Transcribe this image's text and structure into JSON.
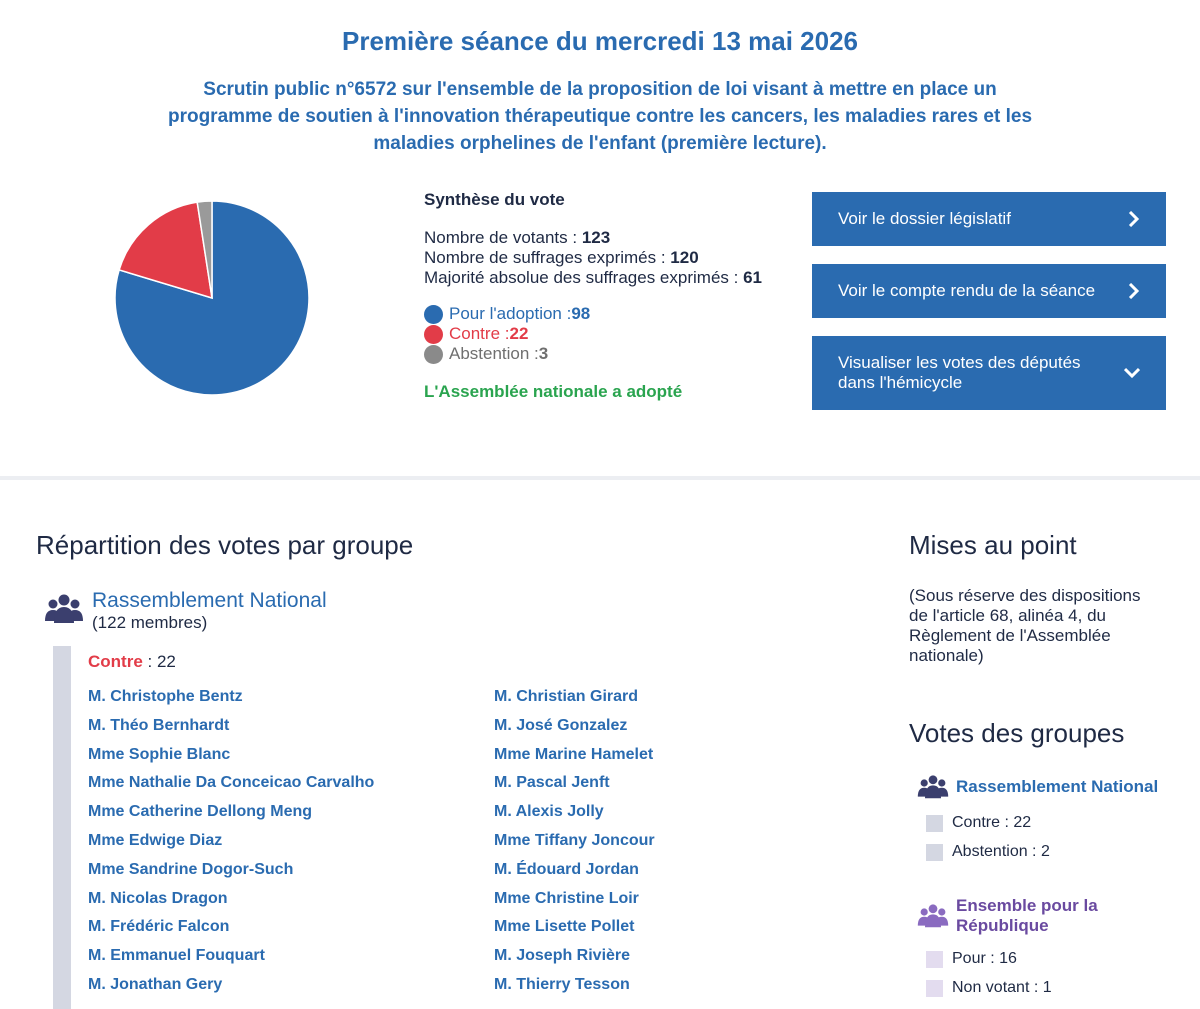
{
  "header": {
    "title": "Première séance du mercredi 13 mai 2026",
    "subtitle": "Scrutin public n°6572 sur l'ensemble de la proposition de loi visant à mettre en place un programme de soutien à l'innovation thérapeutique contre les cancers, les maladies rares et les maladies orphelines de l'enfant (première lecture)."
  },
  "synthese": {
    "heading": "Synthèse du vote",
    "votants_label": "Nombre de votants : ",
    "votants_value": "123",
    "exprimes_label": "Nombre de suffrages exprimés : ",
    "exprimes_value": "120",
    "majorite_label": "Majorité absolue des suffrages exprimés : ",
    "majorite_value": "61",
    "pour_label": "Pour l'adoption : ",
    "pour_value": "98",
    "contre_label": "Contre : ",
    "contre_value": "22",
    "abstention_label": "Abstention : ",
    "abstention_value": "3",
    "outcome": "L'Assemblée nationale a adopté"
  },
  "pie": {
    "slices": [
      {
        "key": "pour",
        "value": 98,
        "color": "#2a6bb0"
      },
      {
        "key": "contre",
        "value": 22,
        "color": "#e23c48"
      },
      {
        "key": "abstention",
        "value": 3,
        "color": "#9a9a9a"
      }
    ]
  },
  "buttons": {
    "dossier": "Voir le dossier législatif",
    "compte_rendu": "Voir le compte rendu de la séance",
    "hemicycle": "Visualiser les votes des députés dans l'hémicycle"
  },
  "repartition": {
    "title": "Répartition des votes par groupe",
    "group_name": "Rassemblement National",
    "group_members": "(122 membres)",
    "contre_label": "Contre",
    "contre_count": " : 22",
    "names_left": [
      "M. Christophe Bentz",
      "M. Théo Bernhardt",
      "Mme Sophie Blanc",
      "Mme Nathalie Da Conceicao Carvalho",
      "Mme Catherine Dellong Meng",
      "Mme Edwige Diaz",
      "Mme Sandrine Dogor-Such",
      "M. Nicolas Dragon",
      "M. Frédéric Falcon",
      "M. Emmanuel Fouquart",
      "M. Jonathan Gery"
    ],
    "names_right": [
      "M. Christian Girard",
      "M. José Gonzalez",
      "Mme Marine Hamelet",
      "M. Pascal Jenft",
      "M. Alexis Jolly",
      "Mme Tiffany Joncour",
      "M. Édouard Jordan",
      "Mme Christine Loir",
      "Mme Lisette Pollet",
      "M. Joseph Rivière",
      "M. Thierry Tesson"
    ]
  },
  "mises_au_point": {
    "title": "Mises au point",
    "note": "(Sous réserve des dispositions de l'article 68, alinéa 4, du Règlement de l'Assemblée nationale)"
  },
  "votes_groupes": {
    "title": "Votes des groupes",
    "groups": [
      {
        "name": "Rassemblement National",
        "color": "#3b3f6e",
        "rows": [
          "Contre : 22",
          "Abstention : 2"
        ],
        "square_color": "#d4d7e2"
      },
      {
        "name": "Ensemble pour la République",
        "color": "#6a4aa0",
        "rows": [
          "Pour : 16",
          "Non votant : 1"
        ],
        "square_color": "#e3dcef"
      }
    ]
  },
  "icons": {
    "group": "people-group-icon",
    "chevron_right": "chevron-right-icon",
    "chevron_down": "chevron-down-icon"
  }
}
